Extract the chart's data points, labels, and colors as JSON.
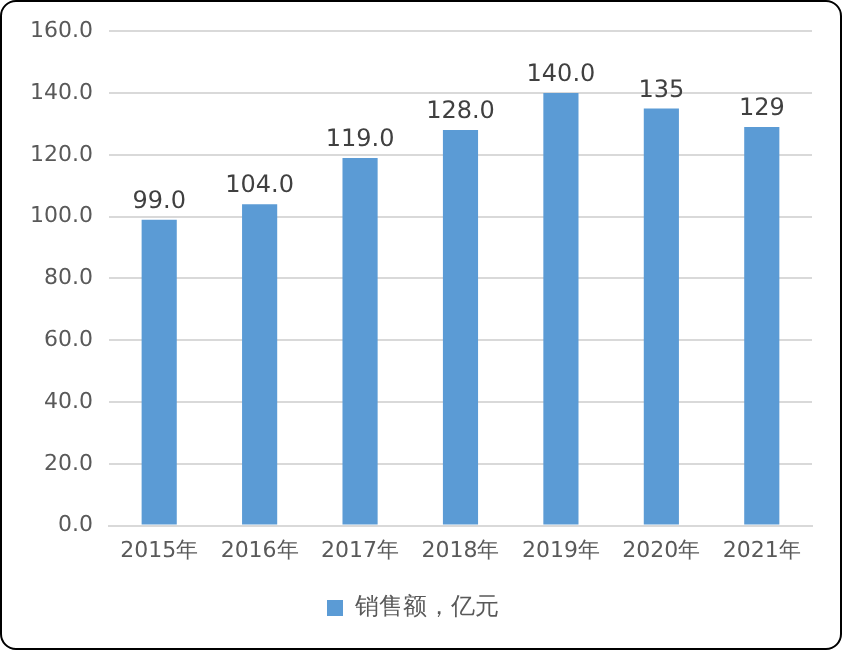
{
  "chart_data": {
    "type": "bar",
    "categories": [
      "2015年",
      "2016年",
      "2017年",
      "2018年",
      "2019年",
      "2020年",
      "2021年"
    ],
    "series": [
      {
        "name": "销售额，亿元",
        "color": "#5b9bd5",
        "values": [
          99,
          104,
          119,
          128,
          140,
          135,
          129
        ],
        "value_labels": [
          "99.0",
          "104.0",
          "119.0",
          "128.0",
          "140.0",
          "135",
          "129"
        ]
      }
    ],
    "ylim": [
      0,
      160
    ],
    "yticks": [
      {
        "value": 0,
        "label": "0.0"
      },
      {
        "value": 20,
        "label": "20.0"
      },
      {
        "value": 40,
        "label": "40.0"
      },
      {
        "value": 60,
        "label": "60.0"
      },
      {
        "value": 80,
        "label": "80.0"
      },
      {
        "value": 100,
        "label": "100.0"
      },
      {
        "value": 120,
        "label": "120.0"
      },
      {
        "value": 140,
        "label": "140.0"
      },
      {
        "value": 160,
        "label": "160.0"
      }
    ],
    "grid": "y",
    "legend": "bottom"
  }
}
